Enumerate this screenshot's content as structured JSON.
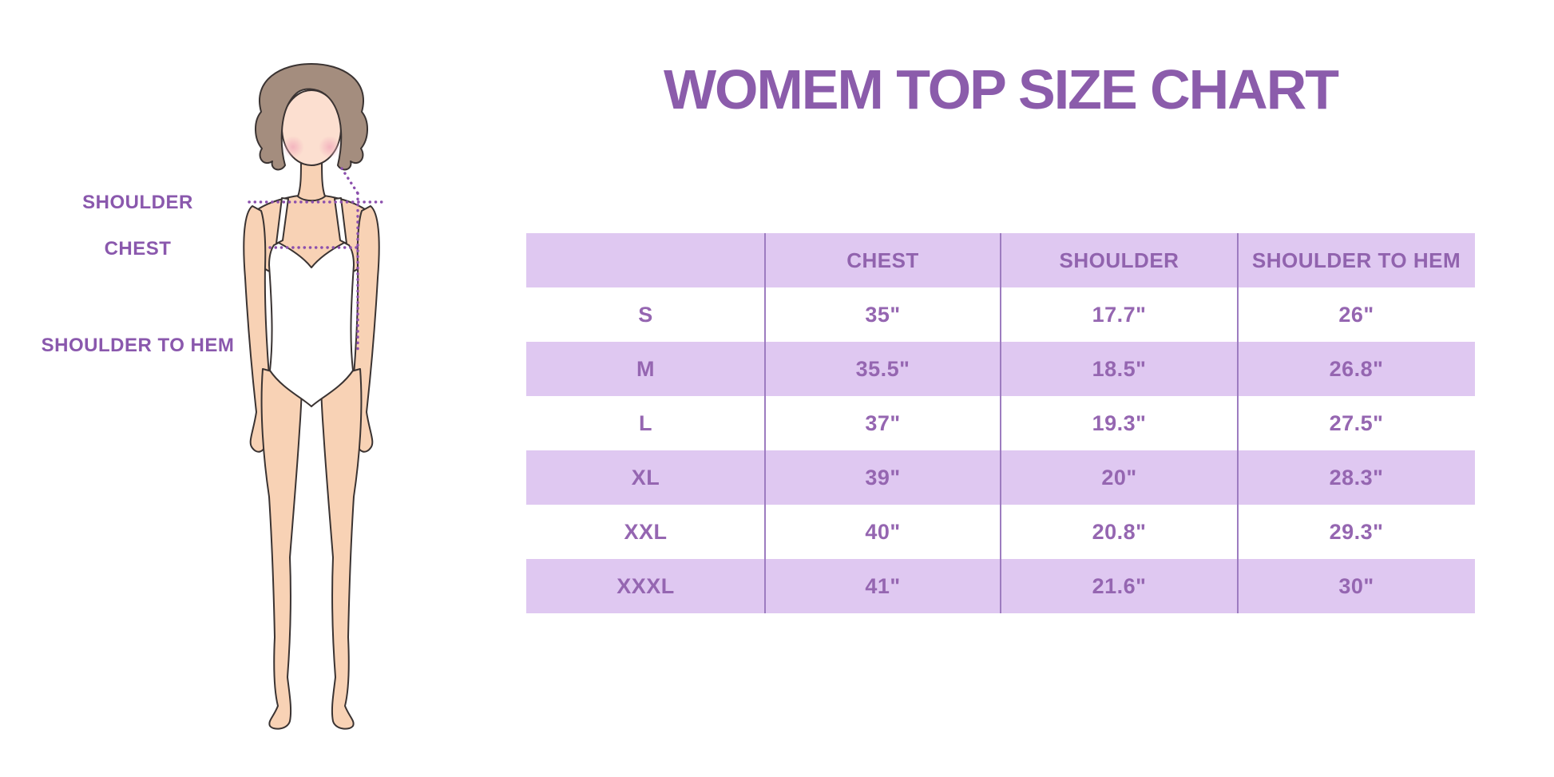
{
  "title": "WOMEM TOP SIZE CHART",
  "figure": {
    "labels": [
      {
        "text": "SHOULDER"
      },
      {
        "text": "CHEST"
      },
      {
        "text": "SHOULDER TO HEM"
      }
    ],
    "illustration": "woman-body-measurement-figure"
  },
  "chart_data": {
    "type": "table",
    "title": "WOMEM TOP SIZE CHART",
    "columns": [
      "",
      "CHEST",
      "SHOULDER",
      "SHOULDER TO HEM"
    ],
    "rows": [
      {
        "size": "S",
        "chest": "35\"",
        "shoulder": "17.7\"",
        "shoulder_to_hem": "26\""
      },
      {
        "size": "M",
        "chest": "35.5\"",
        "shoulder": "18.5\"",
        "shoulder_to_hem": "26.8\""
      },
      {
        "size": "L",
        "chest": "37\"",
        "shoulder": "19.3\"",
        "shoulder_to_hem": "27.5\""
      },
      {
        "size": "XL",
        "chest": "39\"",
        "shoulder": "20\"",
        "shoulder_to_hem": "28.3\""
      },
      {
        "size": "XXL",
        "chest": "40\"",
        "shoulder": "20.8\"",
        "shoulder_to_hem": "29.3\""
      },
      {
        "size": "XXXL",
        "chest": "41\"",
        "shoulder": "21.6\"",
        "shoulder_to_hem": "30\""
      }
    ]
  },
  "colors": {
    "accent_purple": "#8b5cab",
    "label_purple": "#8a58ad",
    "header_purple": "#9163ae",
    "cell_purple": "#9566b1",
    "row_bg": "#dfc8f1",
    "divider": "#9d7cc0",
    "dot_purple": "#8b4fad",
    "skin": "#f8d2b5",
    "skin_light": "#fcdfd0",
    "blush": "#f2aebc",
    "hair": "#a48d7e",
    "outline": "#3a3332"
  }
}
